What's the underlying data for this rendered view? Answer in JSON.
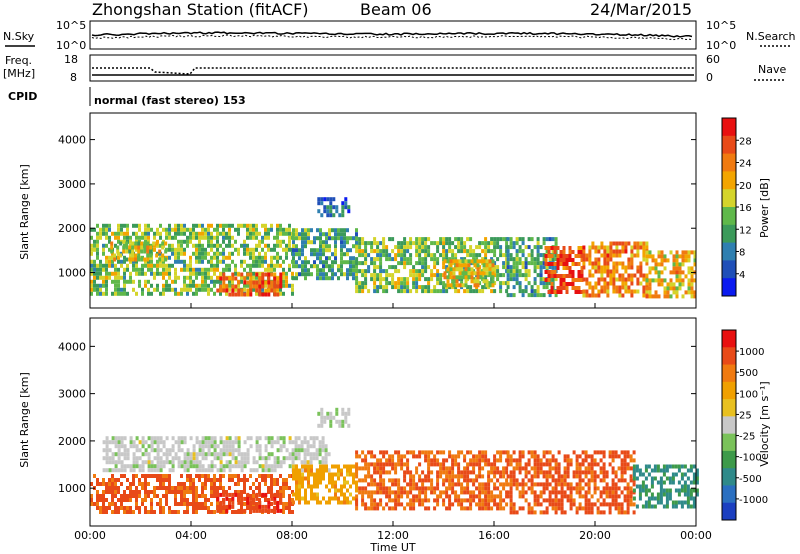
{
  "header": {
    "station": "Zhongshan Station (fitACF)",
    "beam": "Beam 06",
    "date": "24/Mar/2015"
  },
  "top_panels": {
    "nsky_label": "N.Sky",
    "nsearch_label": "N.Search",
    "noise_ticks_left": [
      "10^5",
      "10^0"
    ],
    "noise_ticks_right": [
      "10^5",
      "10^0"
    ],
    "freq_label": "Freq.",
    "freq_unit": "[MHz]",
    "freq_ticks": [
      "18",
      "8"
    ],
    "nave_label": "Nave",
    "nave_ticks": [
      "60",
      "0"
    ],
    "cpid_label": "CPID",
    "cpid_text": "normal (fast stereo) 153"
  },
  "colors": {
    "power_scale": [
      "#0b1bf0",
      "#1f4fb8",
      "#2f7fb0",
      "#3b9a5a",
      "#5fb84a",
      "#d4d42b",
      "#f3a500",
      "#f07a10",
      "#e84a18",
      "#e81010"
    ],
    "velocity_scale": [
      "#1b3fc0",
      "#2a6fc0",
      "#2f8a8a",
      "#3d9a4a",
      "#7ac25a",
      "#c8c8c8",
      "#e8c020",
      "#f0a000",
      "#f07a10",
      "#e84a18",
      "#e81010"
    ]
  },
  "chart_data": [
    {
      "type": "heatmap",
      "panel": "power",
      "xlabel": "",
      "ylabel": "Slant Range [km]",
      "y_ticks": [
        "1000",
        "2000",
        "3000",
        "4000"
      ],
      "ylim": [
        200,
        4600
      ],
      "colorbar_label": "Power [dB]",
      "colorbar_ticks": [
        "28",
        "24",
        "20",
        "16",
        "12",
        "8",
        "4"
      ],
      "clim": [
        0,
        30
      ],
      "regions": [
        {
          "t0": 0.0,
          "t1": 8.0,
          "r0": 500,
          "r1": 2100,
          "level": 0.45
        },
        {
          "t0": 0.8,
          "t1": 3.0,
          "r0": 1300,
          "r1": 1700,
          "level": 0.55
        },
        {
          "t0": 5.0,
          "t1": 7.5,
          "r0": 500,
          "r1": 1000,
          "level": 0.85
        },
        {
          "t0": 8.0,
          "t1": 10.5,
          "r0": 900,
          "r1": 2000,
          "level": 0.35
        },
        {
          "t0": 9.0,
          "t1": 10.3,
          "r0": 2300,
          "r1": 2700,
          "level": 0.2
        },
        {
          "t0": 10.5,
          "t1": 16.5,
          "r0": 600,
          "r1": 1800,
          "level": 0.45
        },
        {
          "t0": 14.0,
          "t1": 16.0,
          "r0": 700,
          "r1": 1300,
          "level": 0.6
        },
        {
          "t0": 16.5,
          "t1": 18.5,
          "r0": 500,
          "r1": 1800,
          "level": 0.35
        },
        {
          "t0": 18.0,
          "t1": 19.5,
          "r0": 600,
          "r1": 1600,
          "level": 0.9
        },
        {
          "t0": 19.5,
          "t1": 22.0,
          "r0": 500,
          "r1": 1700,
          "level": 0.75
        },
        {
          "t0": 22.0,
          "t1": 24.0,
          "r0": 500,
          "r1": 1500,
          "level": 0.65
        }
      ]
    },
    {
      "type": "heatmap",
      "panel": "velocity",
      "xlabel": "Time UT",
      "ylabel": "Slant Range [km]",
      "x_ticks": [
        "00:00",
        "04:00",
        "08:00",
        "12:00",
        "16:00",
        "20:00",
        "00:00"
      ],
      "xlim": [
        0,
        24
      ],
      "y_ticks": [
        "1000",
        "2000",
        "3000",
        "4000"
      ],
      "ylim": [
        200,
        4600
      ],
      "colorbar_label": "Velocity [m s⁻¹]",
      "colorbar_ticks": [
        "1000",
        "500",
        "100",
        "25",
        "-25",
        "-100",
        "-500",
        "-1000"
      ],
      "regions": [
        {
          "t0": 0.0,
          "t1": 8.0,
          "r0": 500,
          "r1": 1300,
          "level": -0.75
        },
        {
          "t0": 0.5,
          "t1": 9.5,
          "r0": 1400,
          "r1": 2100,
          "level": 0.02
        },
        {
          "t0": 5.0,
          "t1": 7.5,
          "r0": 500,
          "r1": 900,
          "level": -0.85
        },
        {
          "t0": 9.0,
          "t1": 10.3,
          "r0": 2300,
          "r1": 2700,
          "level": 0.05
        },
        {
          "t0": 8.0,
          "t1": 10.5,
          "r0": 700,
          "r1": 1500,
          "level": -0.4
        },
        {
          "t0": 10.5,
          "t1": 16.5,
          "r0": 600,
          "r1": 1800,
          "level": -0.7
        },
        {
          "t0": 16.5,
          "t1": 21.5,
          "r0": 500,
          "r1": 1800,
          "level": -0.75
        },
        {
          "t0": 21.5,
          "t1": 24.0,
          "r0": 600,
          "r1": 1500,
          "level": 0.55
        }
      ]
    }
  ]
}
